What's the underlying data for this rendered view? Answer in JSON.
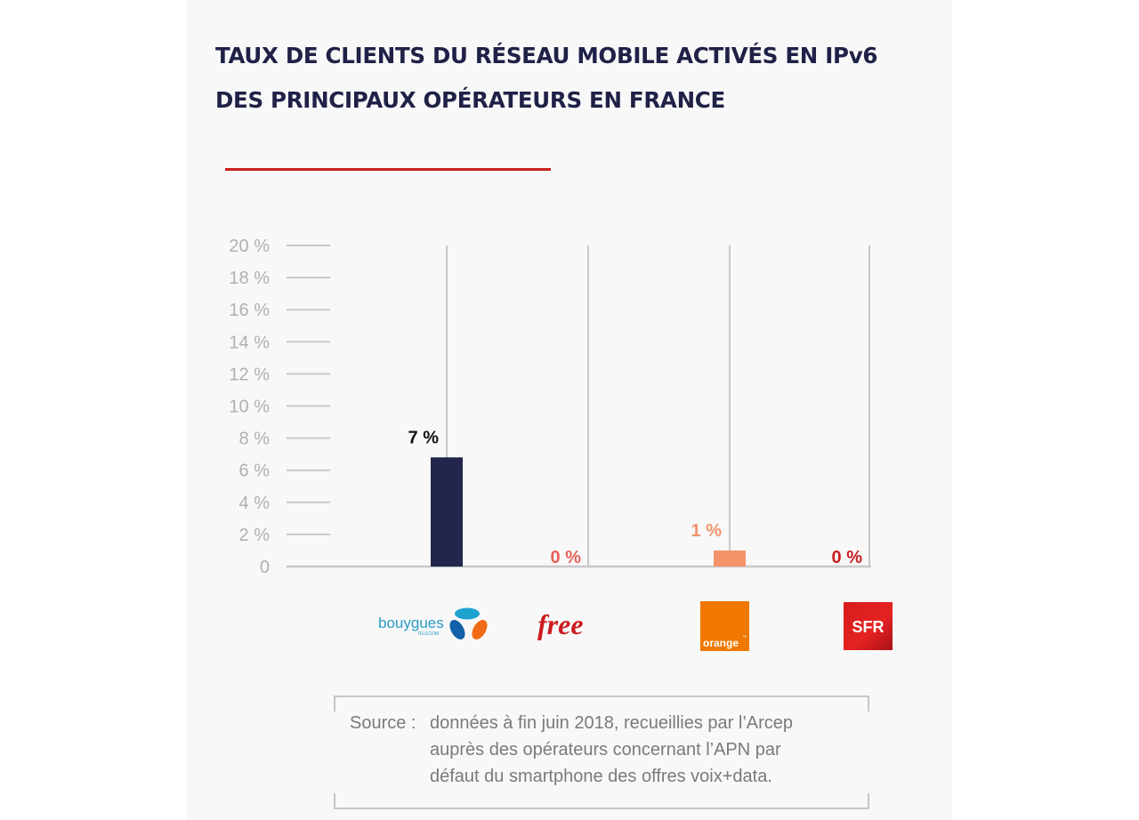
{
  "title": {
    "line1": "TAUX DE CLIENTS DU RÉSEAU MOBILE ACTIVÉS EN IPv6",
    "line2": "DES PRINCIPAUX OPÉRATEURS EN FRANCE"
  },
  "colors": {
    "title": "#1f2147",
    "accent_rule": "#cc1f1f",
    "axis": "#c8c8c8",
    "tick_label": "#b0b0b0"
  },
  "chart_data": {
    "type": "bar",
    "title": "TAUX DE CLIENTS DU RÉSEAU MOBILE ACTIVÉS EN IPv6 DES PRINCIPAUX OPÉRATEURS EN FRANCE",
    "xlabel": "",
    "ylabel": "",
    "ylim": [
      0,
      20
    ],
    "yticks": [
      0,
      2,
      4,
      6,
      8,
      10,
      12,
      14,
      16,
      18,
      20
    ],
    "ytick_labels": [
      "0",
      "2 %",
      "4 %",
      "6 %",
      "8 %",
      "10 %",
      "12 %",
      "14 %",
      "16 %",
      "18 %",
      "20 %"
    ],
    "grid": false,
    "legend": "none",
    "categories": [
      "Bouygues Telecom",
      "Free",
      "Orange",
      "SFR"
    ],
    "values": [
      6.8,
      0,
      1,
      0
    ],
    "data_labels": [
      "7 %",
      "0 %",
      "1 %",
      "0 %"
    ],
    "bar_colors": [
      "#22264c",
      "#e8615a",
      "#f3936a",
      "#c81e20"
    ],
    "label_colors": [
      "#111111",
      "#e8615a",
      "#f3936a",
      "#c81e20"
    ]
  },
  "logos": [
    {
      "name": "bouygues",
      "text": "bouygues",
      "subtext": "TELECOM"
    },
    {
      "name": "free",
      "text": "free"
    },
    {
      "name": "orange",
      "text": "orange",
      "mark": "™"
    },
    {
      "name": "sfr",
      "text": "SFR"
    }
  ],
  "source": {
    "label": "Source :",
    "lines": [
      "données à fin juin 2018, recueillies par l’Arcep",
      "auprès des opérateurs concernant l’APN par",
      "défaut du smartphone des offres voix+data."
    ]
  }
}
